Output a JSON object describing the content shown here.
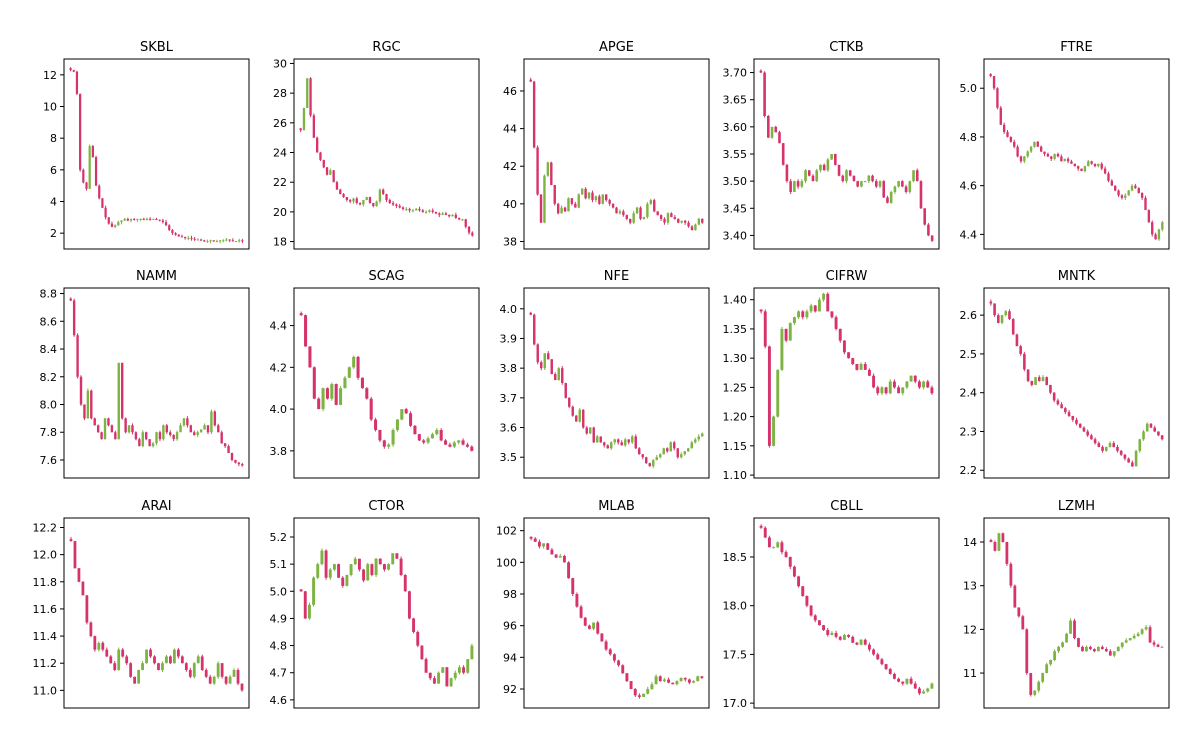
{
  "chart_data": [
    {
      "type": "candlestick",
      "title": "SKBL",
      "yticks": [
        "2",
        "4",
        "6",
        "8",
        "10",
        "12"
      ],
      "ylim": [
        1.0,
        13.0
      ],
      "colors": {
        "up": "#7cb342",
        "down": "#d6336c"
      },
      "series": {
        "name": "",
        "close": [
          12.3,
          12.2,
          10.8,
          6.0,
          5.2,
          4.8,
          7.5,
          6.8,
          5.0,
          4.2,
          3.6,
          3.0,
          2.6,
          2.4,
          2.5,
          2.7,
          2.8,
          2.9,
          2.8,
          2.9,
          2.85,
          2.9,
          2.9,
          2.85,
          2.9,
          2.88,
          2.9,
          2.85,
          2.8,
          2.7,
          2.5,
          2.2,
          2.0,
          1.9,
          1.8,
          1.75,
          1.7,
          1.7,
          1.65,
          1.6,
          1.6,
          1.55,
          1.5,
          1.5,
          1.55,
          1.5,
          1.5,
          1.55,
          1.55,
          1.6,
          1.55,
          1.5,
          1.5,
          1.55,
          1.5
        ]
      }
    },
    {
      "type": "candlestick",
      "title": "RGC",
      "yticks": [
        "18",
        "20",
        "22",
        "24",
        "26",
        "28",
        "30"
      ],
      "ylim": [
        17.5,
        30.3
      ],
      "colors": {
        "up": "#7cb342",
        "down": "#d6336c"
      },
      "series": {
        "name": "",
        "close": [
          25.5,
          27.0,
          29.0,
          26.5,
          25.0,
          24.0,
          23.5,
          23.0,
          22.5,
          22.8,
          22.0,
          21.5,
          21.2,
          21.0,
          20.8,
          20.7,
          20.9,
          20.6,
          20.5,
          20.8,
          21.0,
          20.6,
          20.4,
          20.7,
          21.5,
          21.2,
          20.8,
          20.6,
          20.5,
          20.4,
          20.3,
          20.2,
          20.2,
          20.1,
          20.1,
          20.2,
          20.1,
          20.0,
          20.0,
          20.1,
          20.0,
          19.9,
          19.8,
          19.9,
          19.8,
          19.7,
          19.8,
          19.6,
          19.5,
          19.5,
          19.0,
          18.6,
          18.4
        ]
      }
    },
    {
      "type": "candlestick",
      "title": "APGE",
      "yticks": [
        "38",
        "40",
        "42",
        "44",
        "46"
      ],
      "ylim": [
        37.6,
        47.7
      ],
      "colors": {
        "up": "#7cb342",
        "down": "#d6336c"
      },
      "series": {
        "name": "",
        "close": [
          46.5,
          43.0,
          40.5,
          39.0,
          41.5,
          42.2,
          41.0,
          40.0,
          39.5,
          39.8,
          39.6,
          40.3,
          40.0,
          39.8,
          40.5,
          40.8,
          40.3,
          40.6,
          40.2,
          40.4,
          40.0,
          40.5,
          40.2,
          40.0,
          39.8,
          39.5,
          39.6,
          39.4,
          39.2,
          39.0,
          39.5,
          39.8,
          39.2,
          39.3,
          40.0,
          40.2,
          39.6,
          39.4,
          39.2,
          39.0,
          39.5,
          39.3,
          39.2,
          39.0,
          39.1,
          39.0,
          38.8,
          38.6,
          38.9,
          39.2,
          39.0
        ]
      }
    },
    {
      "type": "candlestick",
      "title": "CTKB",
      "yticks": [
        "3.40",
        "3.45",
        "3.50",
        "3.55",
        "3.60",
        "3.65",
        "3.70"
      ],
      "ylim": [
        3.375,
        3.725
      ],
      "colors": {
        "up": "#7cb342",
        "down": "#d6336c"
      },
      "series": {
        "name": "",
        "close": [
          3.7,
          3.62,
          3.58,
          3.6,
          3.59,
          3.57,
          3.53,
          3.5,
          3.48,
          3.5,
          3.49,
          3.5,
          3.52,
          3.51,
          3.5,
          3.52,
          3.53,
          3.52,
          3.54,
          3.55,
          3.53,
          3.51,
          3.5,
          3.52,
          3.51,
          3.5,
          3.49,
          3.5,
          3.5,
          3.51,
          3.5,
          3.49,
          3.5,
          3.47,
          3.46,
          3.48,
          3.49,
          3.5,
          3.49,
          3.48,
          3.5,
          3.52,
          3.5,
          3.45,
          3.42,
          3.4,
          3.39
        ]
      }
    },
    {
      "type": "candlestick",
      "title": "FTRE",
      "yticks": [
        "4.4",
        "4.6",
        "4.8",
        "5.0"
      ],
      "ylim": [
        4.34,
        5.12
      ],
      "colors": {
        "up": "#7cb342",
        "down": "#d6336c"
      },
      "series": {
        "name": "",
        "close": [
          5.05,
          5.0,
          4.92,
          4.85,
          4.82,
          4.8,
          4.78,
          4.76,
          4.72,
          4.7,
          4.72,
          4.74,
          4.76,
          4.78,
          4.76,
          4.74,
          4.73,
          4.72,
          4.71,
          4.73,
          4.72,
          4.7,
          4.71,
          4.7,
          4.69,
          4.68,
          4.67,
          4.66,
          4.68,
          4.7,
          4.69,
          4.68,
          4.69,
          4.67,
          4.65,
          4.62,
          4.6,
          4.58,
          4.56,
          4.55,
          4.56,
          4.58,
          4.6,
          4.59,
          4.57,
          4.55,
          4.5,
          4.45,
          4.4,
          4.38,
          4.42,
          4.45
        ]
      }
    },
    {
      "type": "candlestick",
      "title": "NAMM",
      "yticks": [
        "7.6",
        "7.8",
        "8.0",
        "8.2",
        "8.4",
        "8.6",
        "8.8"
      ],
      "ylim": [
        7.47,
        8.84
      ],
      "colors": {
        "up": "#7cb342",
        "down": "#d6336c"
      },
      "series": {
        "name": "",
        "close": [
          8.75,
          8.5,
          8.2,
          8.0,
          7.9,
          8.1,
          7.9,
          7.85,
          7.8,
          7.75,
          7.9,
          7.85,
          7.8,
          7.75,
          8.3,
          7.9,
          7.8,
          7.85,
          7.8,
          7.75,
          7.7,
          7.8,
          7.75,
          7.7,
          7.72,
          7.8,
          7.75,
          7.85,
          7.8,
          7.78,
          7.75,
          7.8,
          7.85,
          7.9,
          7.85,
          7.8,
          7.78,
          7.8,
          7.82,
          7.85,
          7.8,
          7.95,
          7.85,
          7.8,
          7.72,
          7.7,
          7.65,
          7.6,
          7.58,
          7.57,
          7.56
        ]
      }
    },
    {
      "type": "candlestick",
      "title": "SCAG",
      "yticks": [
        "3.8",
        "4.0",
        "4.2",
        "4.4"
      ],
      "ylim": [
        3.67,
        4.58
      ],
      "colors": {
        "up": "#7cb342",
        "down": "#d6336c"
      },
      "series": {
        "name": "",
        "close": [
          4.45,
          4.3,
          4.2,
          4.05,
          4.0,
          4.1,
          4.05,
          4.12,
          4.02,
          4.1,
          4.15,
          4.2,
          4.25,
          4.15,
          4.1,
          4.05,
          3.95,
          3.9,
          3.85,
          3.82,
          3.83,
          3.9,
          3.95,
          4.0,
          3.98,
          3.92,
          3.88,
          3.85,
          3.84,
          3.86,
          3.88,
          3.9,
          3.85,
          3.83,
          3.82,
          3.84,
          3.85,
          3.83,
          3.82,
          3.8
        ]
      }
    },
    {
      "type": "candlestick",
      "title": "NFE",
      "yticks": [
        "3.5",
        "3.6",
        "3.7",
        "3.8",
        "3.9",
        "4.0"
      ],
      "ylim": [
        3.43,
        4.07
      ],
      "colors": {
        "up": "#7cb342",
        "down": "#d6336c"
      },
      "series": {
        "name": "",
        "close": [
          3.98,
          3.88,
          3.82,
          3.8,
          3.85,
          3.83,
          3.78,
          3.76,
          3.8,
          3.75,
          3.7,
          3.67,
          3.64,
          3.62,
          3.66,
          3.6,
          3.58,
          3.6,
          3.55,
          3.57,
          3.55,
          3.54,
          3.53,
          3.55,
          3.56,
          3.55,
          3.54,
          3.56,
          3.55,
          3.57,
          3.53,
          3.51,
          3.5,
          3.48,
          3.47,
          3.49,
          3.5,
          3.51,
          3.53,
          3.52,
          3.55,
          3.53,
          3.5,
          3.51,
          3.52,
          3.53,
          3.55,
          3.56,
          3.57,
          3.58
        ]
      }
    },
    {
      "type": "candlestick",
      "title": "CIFRW",
      "yticks": [
        "1.10",
        "1.15",
        "1.20",
        "1.25",
        "1.30",
        "1.35",
        "1.40"
      ],
      "ylim": [
        1.095,
        1.42
      ],
      "colors": {
        "up": "#7cb342",
        "down": "#d6336c"
      },
      "series": {
        "name": "",
        "close": [
          1.38,
          1.32,
          1.15,
          1.2,
          1.28,
          1.35,
          1.33,
          1.36,
          1.37,
          1.38,
          1.37,
          1.38,
          1.39,
          1.38,
          1.4,
          1.41,
          1.38,
          1.37,
          1.35,
          1.33,
          1.31,
          1.3,
          1.29,
          1.28,
          1.29,
          1.28,
          1.27,
          1.25,
          1.24,
          1.25,
          1.24,
          1.26,
          1.25,
          1.24,
          1.25,
          1.26,
          1.27,
          1.26,
          1.25,
          1.26,
          1.25,
          1.24
        ]
      }
    },
    {
      "type": "candlestick",
      "title": "MNTK",
      "yticks": [
        "2.2",
        "2.3",
        "2.4",
        "2.5",
        "2.6"
      ],
      "ylim": [
        2.18,
        2.67
      ],
      "colors": {
        "up": "#7cb342",
        "down": "#d6336c"
      },
      "series": {
        "name": "",
        "close": [
          2.63,
          2.6,
          2.58,
          2.6,
          2.61,
          2.59,
          2.55,
          2.52,
          2.5,
          2.46,
          2.43,
          2.42,
          2.44,
          2.43,
          2.44,
          2.42,
          2.4,
          2.38,
          2.37,
          2.36,
          2.35,
          2.34,
          2.33,
          2.32,
          2.31,
          2.3,
          2.29,
          2.28,
          2.27,
          2.26,
          2.25,
          2.26,
          2.27,
          2.26,
          2.25,
          2.24,
          2.23,
          2.22,
          2.21,
          2.25,
          2.28,
          2.3,
          2.32,
          2.31,
          2.3,
          2.29,
          2.28
        ]
      }
    },
    {
      "type": "candlestick",
      "title": "ARAI",
      "yticks": [
        "11.0",
        "11.2",
        "11.4",
        "11.6",
        "11.8",
        "12.0",
        "12.2"
      ],
      "ylim": [
        10.87,
        12.27
      ],
      "colors": {
        "up": "#7cb342",
        "down": "#d6336c"
      },
      "series": {
        "name": "",
        "close": [
          12.1,
          11.9,
          11.8,
          11.7,
          11.5,
          11.4,
          11.3,
          11.35,
          11.3,
          11.25,
          11.2,
          11.15,
          11.3,
          11.25,
          11.2,
          11.1,
          11.05,
          11.15,
          11.2,
          11.3,
          11.25,
          11.2,
          11.15,
          11.2,
          11.25,
          11.2,
          11.3,
          11.25,
          11.2,
          11.15,
          11.1,
          11.2,
          11.25,
          11.15,
          11.1,
          11.05,
          11.1,
          11.2,
          11.1,
          11.05,
          11.1,
          11.15,
          11.05,
          11.0
        ]
      }
    },
    {
      "type": "candlestick",
      "title": "CTOR",
      "yticks": [
        "4.6",
        "4.7",
        "4.8",
        "4.9",
        "5.0",
        "5.1",
        "5.2"
      ],
      "ylim": [
        4.57,
        5.27
      ],
      "colors": {
        "up": "#7cb342",
        "down": "#d6336c"
      },
      "series": {
        "name": "",
        "close": [
          5.0,
          4.9,
          4.95,
          5.05,
          5.1,
          5.15,
          5.05,
          5.08,
          5.1,
          5.05,
          5.02,
          5.06,
          5.1,
          5.12,
          5.08,
          5.04,
          5.1,
          5.06,
          5.12,
          5.1,
          5.08,
          5.1,
          5.14,
          5.12,
          5.06,
          5.0,
          4.9,
          4.85,
          4.8,
          4.75,
          4.7,
          4.68,
          4.66,
          4.7,
          4.72,
          4.65,
          4.68,
          4.7,
          4.72,
          4.7,
          4.75,
          4.8
        ]
      }
    },
    {
      "type": "candlestick",
      "title": "MLAB",
      "yticks": [
        "92",
        "94",
        "96",
        "98",
        "100",
        "102"
      ],
      "ylim": [
        90.8,
        102.8
      ],
      "colors": {
        "up": "#7cb342",
        "down": "#d6336c"
      },
      "series": {
        "name": "",
        "close": [
          101.5,
          101.3,
          101.0,
          101.2,
          100.8,
          100.5,
          100.3,
          100.4,
          100.0,
          99.0,
          98.0,
          97.2,
          96.5,
          96.0,
          95.8,
          96.2,
          95.5,
          95.0,
          94.5,
          94.2,
          93.8,
          93.5,
          93.0,
          92.5,
          92.0,
          91.6,
          91.5,
          91.7,
          92.0,
          92.3,
          92.8,
          92.5,
          92.6,
          92.4,
          92.3,
          92.5,
          92.7,
          92.6,
          92.4,
          92.5,
          92.8,
          92.7
        ]
      }
    },
    {
      "type": "candlestick",
      "title": "CBLL",
      "yticks": [
        "17.0",
        "17.5",
        "18.0",
        "18.5"
      ],
      "ylim": [
        16.95,
        18.9
      ],
      "colors": {
        "up": "#7cb342",
        "down": "#d6336c"
      },
      "series": {
        "name": "",
        "close": [
          18.8,
          18.7,
          18.6,
          18.6,
          18.65,
          18.55,
          18.5,
          18.4,
          18.3,
          18.2,
          18.1,
          18.0,
          17.9,
          17.85,
          17.8,
          17.75,
          17.7,
          17.72,
          17.68,
          17.65,
          17.7,
          17.68,
          17.62,
          17.6,
          17.65,
          17.6,
          17.55,
          17.5,
          17.45,
          17.4,
          17.35,
          17.3,
          17.25,
          17.22,
          17.2,
          17.25,
          17.2,
          17.15,
          17.1,
          17.12,
          17.15,
          17.2
        ]
      }
    },
    {
      "type": "candlestick",
      "title": "LZMH",
      "yticks": [
        "11",
        "12",
        "13",
        "14"
      ],
      "ylim": [
        10.2,
        14.55
      ],
      "colors": {
        "up": "#7cb342",
        "down": "#d6336c"
      },
      "series": {
        "name": "",
        "close": [
          14.0,
          13.8,
          14.2,
          14.0,
          13.5,
          13.0,
          12.5,
          12.3,
          12.0,
          11.0,
          10.5,
          10.6,
          10.8,
          11.0,
          11.2,
          11.3,
          11.5,
          11.6,
          11.7,
          11.9,
          12.2,
          11.8,
          11.6,
          11.5,
          11.6,
          11.55,
          11.5,
          11.6,
          11.55,
          11.5,
          11.4,
          11.5,
          11.6,
          11.7,
          11.75,
          11.8,
          11.85,
          11.9,
          12.0,
          12.05,
          11.7,
          11.65,
          11.6,
          11.6
        ]
      }
    }
  ]
}
